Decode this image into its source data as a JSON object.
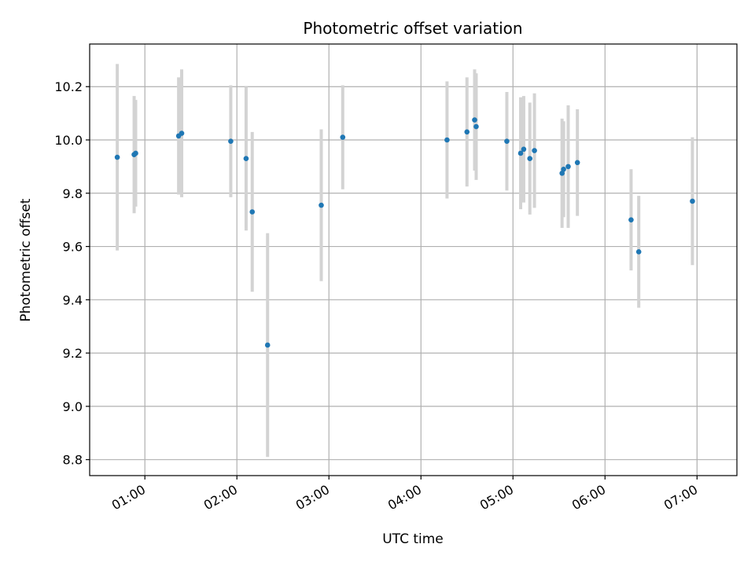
{
  "chart_data": {
    "type": "scatter",
    "title": "Photometric offset variation",
    "xlabel": "UTC time",
    "ylabel": "Photometric offset",
    "x_ticks": [
      "01:00",
      "02:00",
      "03:00",
      "04:00",
      "05:00",
      "06:00",
      "07:00"
    ],
    "y_ticks": [
      "8.8",
      "9.0",
      "9.2",
      "9.4",
      "9.6",
      "9.8",
      "10.0",
      "10.2"
    ],
    "xlim": [
      "00:24",
      "07:26"
    ],
    "ylim": [
      8.74,
      10.36
    ],
    "grid": true,
    "colors": {
      "point": "#1f77b4",
      "errorbar": "#d3d3d3",
      "grid": "#b0b0b0"
    },
    "points": [
      {
        "x": "00:42",
        "y": 9.935,
        "err": 0.35
      },
      {
        "x": "00:53",
        "y": 9.945,
        "err": 0.22
      },
      {
        "x": "00:54",
        "y": 9.95,
        "err": 0.2
      },
      {
        "x": "01:22",
        "y": 10.015,
        "err": 0.22
      },
      {
        "x": "01:24",
        "y": 10.025,
        "err": 0.24
      },
      {
        "x": "01:56",
        "y": 9.995,
        "err": 0.21
      },
      {
        "x": "02:06",
        "y": 9.93,
        "err": 0.27
      },
      {
        "x": "02:10",
        "y": 9.73,
        "err": 0.3
      },
      {
        "x": "02:20",
        "y": 9.23,
        "err": 0.42
      },
      {
        "x": "02:55",
        "y": 9.755,
        "err": 0.285
      },
      {
        "x": "03:09",
        "y": 10.01,
        "err": 0.195
      },
      {
        "x": "04:17",
        "y": 10.0,
        "err": 0.22
      },
      {
        "x": "04:30",
        "y": 10.03,
        "err": 0.205
      },
      {
        "x": "04:35",
        "y": 10.075,
        "err": 0.19
      },
      {
        "x": "04:36",
        "y": 10.05,
        "err": 0.2
      },
      {
        "x": "04:56",
        "y": 9.995,
        "err": 0.185
      },
      {
        "x": "05:05",
        "y": 9.95,
        "err": 0.21
      },
      {
        "x": "05:07",
        "y": 9.965,
        "err": 0.2
      },
      {
        "x": "05:11",
        "y": 9.93,
        "err": 0.21
      },
      {
        "x": "05:14",
        "y": 9.96,
        "err": 0.215
      },
      {
        "x": "05:32",
        "y": 9.875,
        "err": 0.205
      },
      {
        "x": "05:33",
        "y": 9.89,
        "err": 0.18
      },
      {
        "x": "05:36",
        "y": 9.9,
        "err": 0.23
      },
      {
        "x": "05:42",
        "y": 9.915,
        "err": 0.2
      },
      {
        "x": "06:17",
        "y": 9.7,
        "err": 0.19
      },
      {
        "x": "06:22",
        "y": 9.58,
        "err": 0.21
      },
      {
        "x": "06:57",
        "y": 9.77,
        "err": 0.24
      }
    ]
  }
}
